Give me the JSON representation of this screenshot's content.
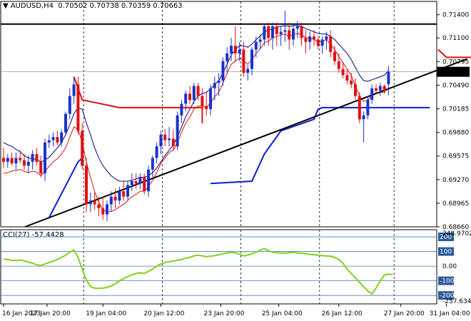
{
  "header": {
    "symbol": "AUDUSD,H4",
    "open": "0.70502",
    "high": "0.70738",
    "low": "0.70359",
    "close": "0.70663",
    "marker": "▼"
  },
  "colors": {
    "bull": "#1a33cc",
    "bear": "#e01010",
    "inner_band": "#e01010",
    "outer_band": "#000080",
    "stop_bull": "#0a1fd0",
    "stop_bear": "#e01010",
    "trendline": "#000000",
    "cci_line": "#7fd11b",
    "price_box": "#000000"
  },
  "cci": {
    "label": "CCI(27) -57.4428",
    "max_label": "248.9702",
    "min_label": "-257.634",
    "levels": [
      "200",
      "100",
      "0.00",
      "-100",
      "-200"
    ]
  },
  "chart_data": [
    {
      "type": "candlestick",
      "title": "AUDUSD,H4",
      "y_ticks": [
        "0.71400",
        "0.71100",
        "0.70795",
        "0.70490",
        "0.70185",
        "0.69880",
        "0.69575",
        "0.69270",
        "0.68965",
        "0.68660"
      ],
      "current_price": "0.70663",
      "ylim": [
        0.6866,
        0.7148
      ],
      "x_labels": [
        "16 Jan 2023",
        "17 Jan 20:00",
        "19 Jan 04:00",
        "20 Jan 12:00",
        "23 Jan 20:00",
        "25 Jan 04:00",
        "26 Jan 12:00",
        "27 Jan 20:00",
        "31 Jan 04:00"
      ],
      "horizontal_line": 0.7128,
      "trendline": [
        [
          0,
          0.6866
        ],
        [
          112,
          0.7083
        ]
      ],
      "candles": [
        [
          0.6955,
          0.6968,
          0.6942,
          0.695
        ],
        [
          0.695,
          0.696,
          0.6942,
          0.6955
        ],
        [
          0.6955,
          0.6962,
          0.6945,
          0.6948
        ],
        [
          0.6948,
          0.6962,
          0.694,
          0.6955
        ],
        [
          0.6955,
          0.6965,
          0.6948,
          0.6952
        ],
        [
          0.6952,
          0.696,
          0.694,
          0.6945
        ],
        [
          0.6945,
          0.6958,
          0.6935,
          0.695
        ],
        [
          0.695,
          0.6965,
          0.694,
          0.696
        ],
        [
          0.696,
          0.6968,
          0.6945,
          0.695
        ],
        [
          0.695,
          0.6958,
          0.693,
          0.6935
        ],
        [
          0.6935,
          0.698,
          0.6925,
          0.6975
        ],
        [
          0.6975,
          0.6985,
          0.6968,
          0.6978
        ],
        [
          0.6978,
          0.6988,
          0.697,
          0.6982
        ],
        [
          0.6982,
          0.699,
          0.6972,
          0.6975
        ],
        [
          0.6975,
          0.6992,
          0.697,
          0.6988
        ],
        [
          0.6988,
          0.7015,
          0.6985,
          0.7012
        ],
        [
          0.7012,
          0.7045,
          0.7005,
          0.7035
        ],
        [
          0.7035,
          0.706,
          0.7025,
          0.705
        ],
        [
          0.705,
          0.706,
          0.6985,
          0.699
        ],
        [
          0.699,
          0.7,
          0.694,
          0.6945
        ],
        [
          0.6945,
          0.6955,
          0.6885,
          0.6895
        ],
        [
          0.6895,
          0.691,
          0.6885,
          0.69
        ],
        [
          0.69,
          0.691,
          0.6888,
          0.6895
        ],
        [
          0.6895,
          0.6905,
          0.688,
          0.689
        ],
        [
          0.689,
          0.6905,
          0.6875,
          0.6882
        ],
        [
          0.6882,
          0.69,
          0.6873,
          0.6895
        ],
        [
          0.6895,
          0.6912,
          0.6885,
          0.6905
        ],
        [
          0.6905,
          0.6915,
          0.689,
          0.69
        ],
        [
          0.69,
          0.6918,
          0.6895,
          0.6912
        ],
        [
          0.6912,
          0.6925,
          0.69,
          0.6905
        ],
        [
          0.6905,
          0.6925,
          0.69,
          0.692
        ],
        [
          0.692,
          0.6935,
          0.6912,
          0.6925
        ],
        [
          0.6925,
          0.6935,
          0.6915,
          0.6922
        ],
        [
          0.6922,
          0.6935,
          0.6915,
          0.693
        ],
        [
          0.693,
          0.6935,
          0.6908,
          0.6912
        ],
        [
          0.6912,
          0.6945,
          0.6905,
          0.694
        ],
        [
          0.694,
          0.6958,
          0.693,
          0.6955
        ],
        [
          0.6955,
          0.6975,
          0.6948,
          0.697
        ],
        [
          0.697,
          0.699,
          0.696,
          0.6985
        ],
        [
          0.6985,
          0.6992,
          0.697,
          0.6978
        ],
        [
          0.6978,
          0.6995,
          0.697,
          0.698
        ],
        [
          0.698,
          0.6992,
          0.6965,
          0.697
        ],
        [
          0.697,
          0.7015,
          0.6965,
          0.701
        ],
        [
          0.701,
          0.703,
          0.7,
          0.7025
        ],
        [
          0.7025,
          0.7042,
          0.7015,
          0.7038
        ],
        [
          0.7038,
          0.7048,
          0.7025,
          0.703
        ],
        [
          0.703,
          0.7052,
          0.7025,
          0.7048
        ],
        [
          0.7048,
          0.7052,
          0.703,
          0.7035
        ],
        [
          0.7035,
          0.7045,
          0.7015,
          0.7022
        ],
        [
          0.7022,
          0.704,
          0.701,
          0.7018
        ],
        [
          0.7018,
          0.705,
          0.701,
          0.7045
        ],
        [
          0.7045,
          0.706,
          0.703,
          0.7052
        ],
        [
          0.7052,
          0.7065,
          0.7035,
          0.7055
        ],
        [
          0.7055,
          0.7085,
          0.7048,
          0.708
        ],
        [
          0.708,
          0.7098,
          0.7065,
          0.709
        ],
        [
          0.709,
          0.711,
          0.708,
          0.71
        ],
        [
          0.71,
          0.7125,
          0.708,
          0.709
        ],
        [
          0.709,
          0.7105,
          0.708,
          0.7095
        ],
        [
          0.7095,
          0.7105,
          0.706,
          0.7065
        ],
        [
          0.7065,
          0.7075,
          0.7055,
          0.707
        ],
        [
          0.707,
          0.7098,
          0.7062,
          0.7095
        ],
        [
          0.7095,
          0.7112,
          0.7085,
          0.7105
        ],
        [
          0.7105,
          0.7115,
          0.7095,
          0.7108
        ],
        [
          0.7108,
          0.7128,
          0.71,
          0.7125
        ],
        [
          0.7125,
          0.713,
          0.71,
          0.711
        ],
        [
          0.711,
          0.713,
          0.7095,
          0.7125
        ],
        [
          0.7125,
          0.713,
          0.71,
          0.7115
        ],
        [
          0.7115,
          0.7125,
          0.71,
          0.7118
        ],
        [
          0.7118,
          0.7145,
          0.7105,
          0.712
        ],
        [
          0.712,
          0.713,
          0.7095,
          0.7108
        ],
        [
          0.7108,
          0.7128,
          0.71,
          0.7122
        ],
        [
          0.7122,
          0.7132,
          0.711,
          0.7125
        ],
        [
          0.7125,
          0.713,
          0.71,
          0.711
        ],
        [
          0.711,
          0.712,
          0.709,
          0.7105
        ],
        [
          0.7105,
          0.7118,
          0.7095,
          0.7112
        ],
        [
          0.7112,
          0.712,
          0.71,
          0.7108
        ],
        [
          0.7108,
          0.7112,
          0.7095,
          0.71
        ],
        [
          0.71,
          0.7112,
          0.709,
          0.7108
        ],
        [
          0.7108,
          0.7118,
          0.7095,
          0.7112
        ],
        [
          0.7112,
          0.712,
          0.7085,
          0.7092
        ],
        [
          0.7092,
          0.71,
          0.7075,
          0.708
        ],
        [
          0.708,
          0.709,
          0.7065,
          0.707
        ],
        [
          0.707,
          0.7078,
          0.7058,
          0.7062
        ],
        [
          0.7062,
          0.707,
          0.705,
          0.7055
        ],
        [
          0.7055,
          0.7065,
          0.7045,
          0.705
        ],
        [
          0.705,
          0.7058,
          0.703,
          0.7035
        ],
        [
          0.7035,
          0.704,
          0.7,
          0.7005
        ],
        [
          0.7005,
          0.7015,
          0.6975,
          0.701
        ],
        [
          0.701,
          0.7035,
          0.7005,
          0.703
        ],
        [
          0.703,
          0.705,
          0.7025,
          0.7045
        ],
        [
          0.7045,
          0.705,
          0.7038,
          0.7042
        ],
        [
          0.7042,
          0.7052,
          0.7035,
          0.7048
        ],
        [
          0.7048,
          0.705,
          0.7038,
          0.7042
        ],
        [
          0.70502,
          0.70738,
          0.70359,
          0.70663
        ]
      ],
      "bands": {
        "inner": [
          0.6935,
          0.6936,
          0.6938,
          0.6939,
          0.694,
          0.6938,
          0.6936,
          0.6938,
          0.6937,
          0.6932,
          0.6938,
          0.6944,
          0.695,
          0.6954,
          0.696,
          0.6968,
          0.6982,
          0.6995,
          0.6992,
          0.6975,
          0.695,
          0.693,
          0.6912,
          0.6898,
          0.6888,
          0.6885,
          0.6886,
          0.6888,
          0.6892,
          0.6895,
          0.69,
          0.6905,
          0.6908,
          0.6912,
          0.6912,
          0.6918,
          0.6926,
          0.6936,
          0.6948,
          0.6955,
          0.6962,
          0.6965,
          0.6975,
          0.6988,
          0.7,
          0.7008,
          0.7018,
          0.7022,
          0.7022,
          0.702,
          0.7026,
          0.7034,
          0.704,
          0.7052,
          0.7064,
          0.7076,
          0.708,
          0.7084,
          0.708,
          0.7076,
          0.7082,
          0.709,
          0.7096,
          0.7104,
          0.7106,
          0.711,
          0.7112,
          0.7114,
          0.7115,
          0.7112,
          0.7114,
          0.7116,
          0.7114,
          0.711,
          0.711,
          0.7108,
          0.7105,
          0.7105,
          0.7108,
          0.7102,
          0.7095,
          0.7086,
          0.7078,
          0.707,
          0.7062,
          0.7048,
          0.7035,
          0.7028,
          0.703,
          0.7035,
          0.7038,
          0.704,
          0.704,
          0.7045
        ],
        "outer": [
          0.6975,
          0.6972,
          0.697,
          0.6966,
          0.6963,
          0.6958,
          0.6955,
          0.6954,
          0.6953,
          0.695,
          0.6952,
          0.6956,
          0.6962,
          0.6968,
          0.6975,
          0.6985,
          0.6998,
          0.7012,
          0.702,
          0.7018,
          0.7,
          0.6985,
          0.6968,
          0.6955,
          0.6945,
          0.6938,
          0.6932,
          0.6928,
          0.6925,
          0.6925,
          0.6925,
          0.6926,
          0.6928,
          0.693,
          0.693,
          0.6932,
          0.6936,
          0.6942,
          0.695,
          0.6958,
          0.6965,
          0.6972,
          0.6982,
          0.6995,
          0.7008,
          0.7018,
          0.7028,
          0.7035,
          0.7038,
          0.704,
          0.7044,
          0.705,
          0.7055,
          0.7065,
          0.7076,
          0.7088,
          0.7095,
          0.71,
          0.71,
          0.7098,
          0.7102,
          0.7108,
          0.7112,
          0.7118,
          0.712,
          0.7122,
          0.7124,
          0.7125,
          0.7126,
          0.7125,
          0.7126,
          0.7126,
          0.7125,
          0.7122,
          0.712,
          0.7118,
          0.7116,
          0.7115,
          0.7115,
          0.7112,
          0.7108,
          0.7102,
          0.7096,
          0.709,
          0.7082,
          0.7072,
          0.7062,
          0.7055,
          0.7054,
          0.7056,
          0.7058,
          0.706,
          0.7062,
          0.7068
        ]
      },
      "stops": {
        "bear_segments": [
          [
            [
              17,
              0.706
            ],
            [
              19,
              0.703
            ],
            [
              28,
              0.702
            ],
            [
              48,
              0.702
            ],
            [
              48,
              0.7
            ]
          ],
          [
            [
              105,
              0.7095
            ],
            [
              107,
              0.7085
            ],
            [
              113,
              0.7085
            ]
          ]
        ],
        "bull_segments": [
          [
            [
              11,
              0.6878
            ],
            [
              18,
              0.695
            ],
            [
              19,
              0.6955
            ]
          ],
          [
            [
              50,
              0.6922
            ],
            [
              60,
              0.6925
            ],
            [
              63,
              0.696
            ],
            [
              67,
              0.699
            ],
            [
              75,
              0.7005
            ],
            [
              76,
              0.7018
            ],
            [
              77,
              0.702
            ],
            [
              103,
              0.702
            ]
          ]
        ]
      },
      "cci_values": [
        48,
        45,
        40,
        38,
        42,
        35,
        28,
        20,
        10,
        5,
        15,
        25,
        35,
        45,
        60,
        75,
        95,
        110,
        60,
        -20,
        -95,
        -140,
        -150,
        -152,
        -150,
        -145,
        -135,
        -120,
        -100,
        -85,
        -70,
        -60,
        -50,
        -45,
        -50,
        -35,
        -20,
        0,
        15,
        25,
        30,
        35,
        40,
        45,
        55,
        60,
        70,
        75,
        70,
        65,
        68,
        72,
        78,
        85,
        90,
        95,
        90,
        82,
        70,
        75,
        85,
        95,
        110,
        120,
        105,
        95,
        92,
        90,
        88,
        92,
        95,
        90,
        88,
        85,
        80,
        78,
        75,
        72,
        70,
        68,
        60,
        45,
        20,
        -20,
        -50,
        -80,
        -110,
        -140,
        -170,
        -190,
        -150,
        -100,
        -60,
        -55,
        -57.4428
      ],
      "cci_ylim": [
        -257.634,
        248.9702
      ]
    }
  ]
}
